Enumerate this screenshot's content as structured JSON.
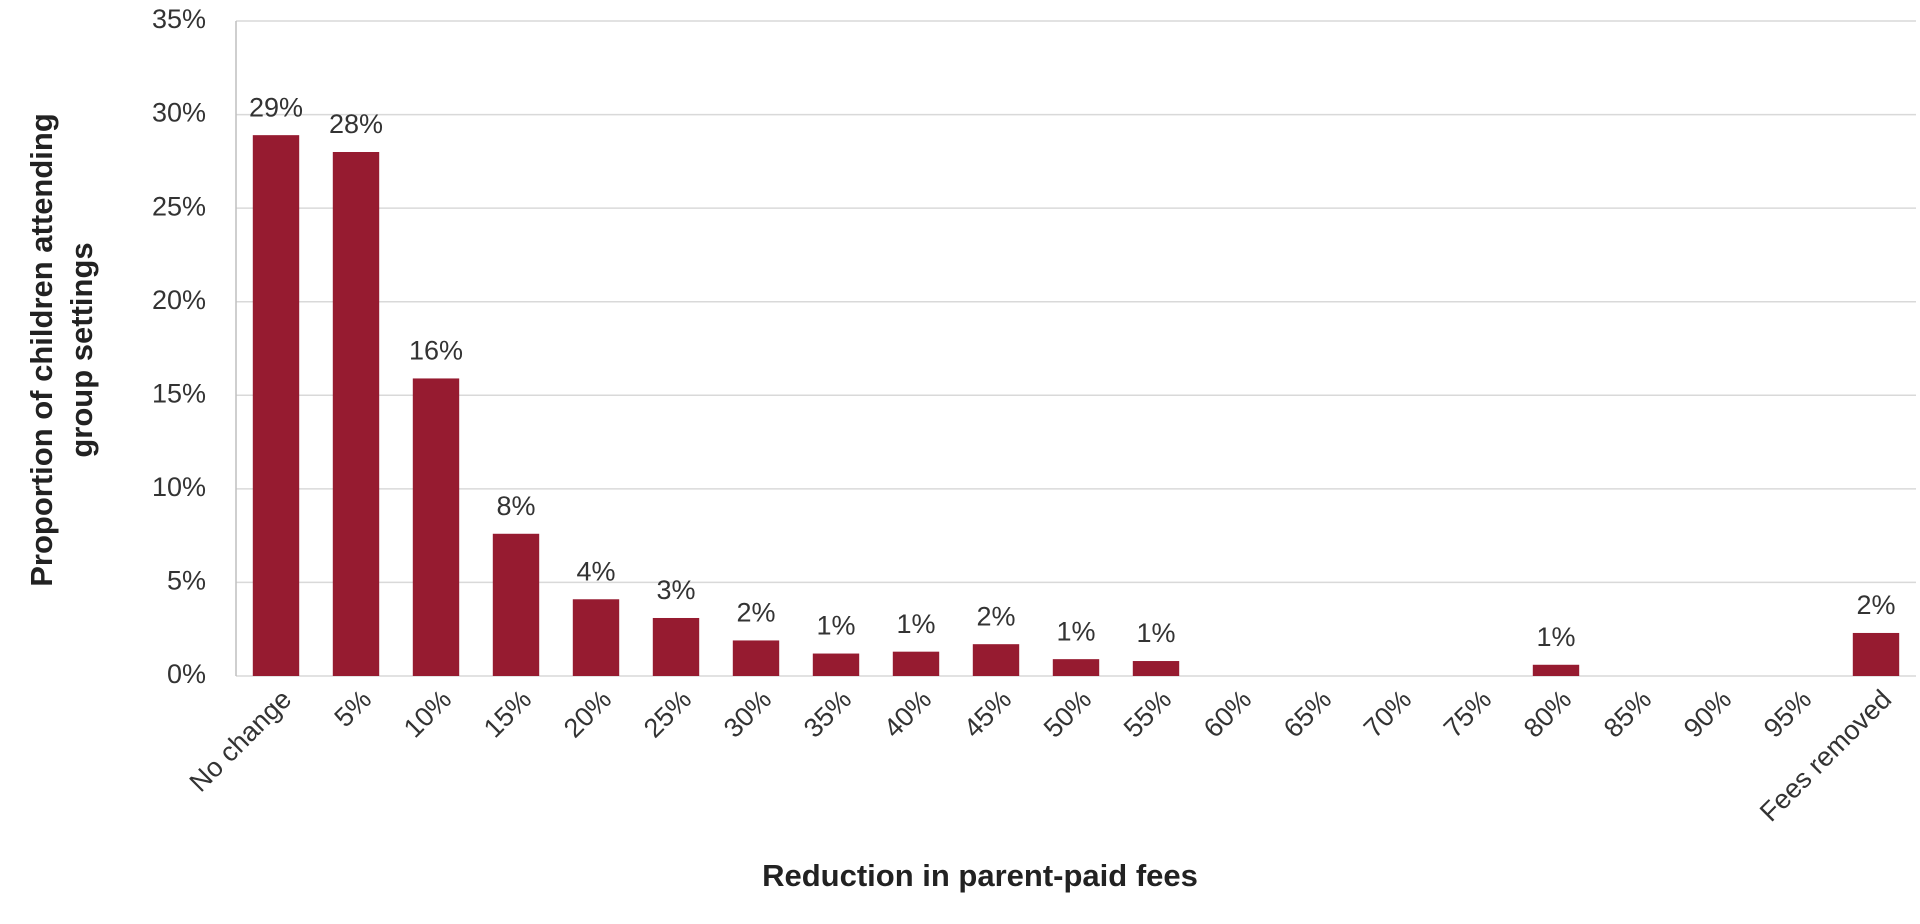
{
  "chart_data": {
    "type": "bar",
    "xlabel": "Reduction in parent-paid fees",
    "ylabel": [
      "Proportion of children attending",
      "group settings"
    ],
    "categories": [
      "No change",
      "5%",
      "10%",
      "15%",
      "20%",
      "25%",
      "30%",
      "35%",
      "40%",
      "45%",
      "50%",
      "55%",
      "60%",
      "65%",
      "70%",
      "75%",
      "80%",
      "85%",
      "90%",
      "95%",
      "Fees removed"
    ],
    "values": [
      28.9,
      28.0,
      15.9,
      7.6,
      4.1,
      3.1,
      1.9,
      1.2,
      1.3,
      1.7,
      0.9,
      0.8,
      0,
      0,
      0,
      0,
      0.6,
      0,
      0,
      0,
      2.3
    ],
    "value_labels": [
      "29%",
      "28%",
      "16%",
      "8%",
      "4%",
      "3%",
      "2%",
      "1%",
      "1%",
      "2%",
      "1%",
      "1%",
      null,
      null,
      null,
      null,
      "1%",
      null,
      null,
      null,
      "2%"
    ],
    "color": "#961b30",
    "ylim": [
      0,
      35
    ],
    "yticks": [
      {
        "value": 0,
        "label": "0%"
      },
      {
        "value": 5,
        "label": "5%"
      },
      {
        "value": 10,
        "label": "10%"
      },
      {
        "value": 15,
        "label": "15%"
      },
      {
        "value": 20,
        "label": "20%"
      },
      {
        "value": 25,
        "label": "25%"
      },
      {
        "value": 30,
        "label": "30%"
      },
      {
        "value": 35,
        "label": "35%"
      }
    ],
    "grid": true
  }
}
